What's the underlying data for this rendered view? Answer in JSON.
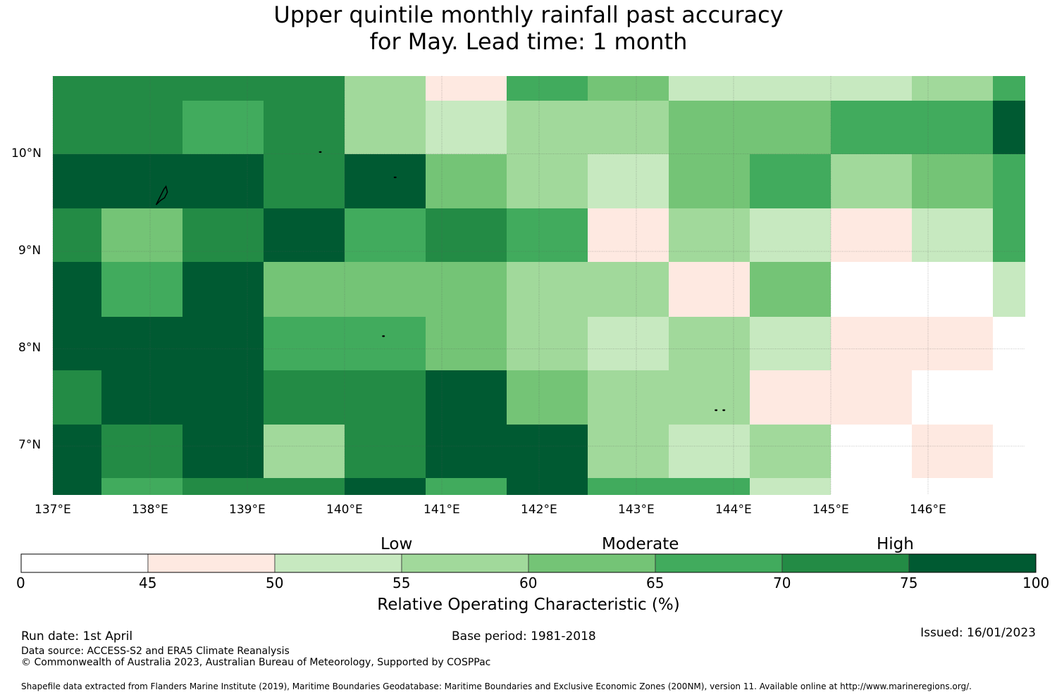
{
  "title": {
    "line1": "Upper quintile monthly rainfall past accuracy",
    "line2": "for May. Lead time: 1 month"
  },
  "map": {
    "lon_range": [
      137.0,
      147.0
    ],
    "lat_range": [
      6.5,
      10.8
    ],
    "x_ticks": [
      "137°E",
      "138°E",
      "139°E",
      "140°E",
      "141°E",
      "142°E",
      "143°E",
      "144°E",
      "145°E",
      "146°E"
    ],
    "y_ticks": [
      "10°N",
      "9°N",
      "8°N",
      "7°N"
    ],
    "x_tick_values": [
      137,
      138,
      139,
      140,
      141,
      142,
      143,
      144,
      145,
      146
    ],
    "y_tick_values": [
      10,
      9,
      8,
      7
    ],
    "grid_col_edges_lon": [
      137.0,
      137.5,
      138.33,
      139.17,
      140.0,
      140.83,
      141.67,
      142.5,
      143.33,
      144.17,
      145.0,
      145.83,
      146.67,
      147.0
    ],
    "grid_row_edges_lat": [
      10.8,
      10.55,
      10.0,
      9.44,
      8.89,
      8.33,
      7.78,
      7.22,
      6.67,
      6.5
    ],
    "classes": [
      "#ffffff",
      "#fee9e1",
      "#c7e9c0",
      "#a1d99b",
      "#74c476",
      "#41ab5d",
      "#238b45",
      "#005a32"
    ],
    "class_matrix": [
      [
        6,
        6,
        6,
        6,
        3,
        1,
        5,
        4,
        2,
        2,
        2,
        3,
        5
      ],
      [
        6,
        6,
        5,
        6,
        3,
        2,
        3,
        3,
        4,
        4,
        5,
        5,
        7
      ],
      [
        7,
        7,
        7,
        6,
        7,
        4,
        3,
        2,
        4,
        5,
        3,
        4,
        5
      ],
      [
        6,
        4,
        6,
        7,
        5,
        6,
        5,
        1,
        3,
        2,
        1,
        2,
        5
      ],
      [
        7,
        5,
        7,
        4,
        4,
        4,
        3,
        3,
        1,
        4,
        0,
        0,
        2
      ],
      [
        7,
        7,
        7,
        5,
        5,
        4,
        3,
        2,
        3,
        2,
        1,
        1,
        0
      ],
      [
        6,
        7,
        7,
        6,
        6,
        7,
        4,
        3,
        3,
        1,
        1,
        0,
        0
      ],
      [
        7,
        6,
        7,
        3,
        6,
        7,
        7,
        3,
        2,
        3,
        0,
        1,
        0
      ],
      [
        7,
        5,
        6,
        6,
        7,
        5,
        7,
        5,
        5,
        2,
        0,
        0,
        0
      ]
    ],
    "islands": [
      {
        "name": "yap",
        "lon": 138.12,
        "lat": 9.58
      },
      {
        "name": "ngulu",
        "lon": 139.75,
        "lat": 10.02
      },
      {
        "name": "fais",
        "lon": 140.52,
        "lat": 9.76
      },
      {
        "name": "sorol",
        "lon": 140.4,
        "lat": 8.13
      },
      {
        "name": "woleai-a",
        "lon": 143.82,
        "lat": 7.37
      },
      {
        "name": "woleai-b",
        "lon": 143.9,
        "lat": 7.37
      }
    ]
  },
  "colorbar": {
    "category_words": [
      "Low",
      "Moderate",
      "High"
    ],
    "tick_labels": [
      "0",
      "45",
      "50",
      "55",
      "60",
      "65",
      "70",
      "75",
      "100"
    ],
    "colors": [
      "#ffffff",
      "#fee9e1",
      "#c7e9c0",
      "#a1d99b",
      "#74c476",
      "#41ab5d",
      "#238b45",
      "#005a32"
    ],
    "title": "Relative Operating Characteristic (%)"
  },
  "footer": {
    "run_date": "Run date: 1st April",
    "base_period": "Base period: 1981-2018",
    "issued": "Issued: 16/01/2023",
    "data_source": "Data source: ACCESS-S2 and ERA5 Climate Reanalysis",
    "copyright": "© Commonwealth of Australia 2023, Australian Bureau of Meteorology, Supported by COSPPac",
    "shapefile": "Shapefile data extracted from Flanders Marine Institute (2019), Maritime Boundaries Geodatabase: Maritime Boundaries and Exclusive Economic Zones (200NM), version 11. Available online at http://www.marineregions.org/."
  }
}
